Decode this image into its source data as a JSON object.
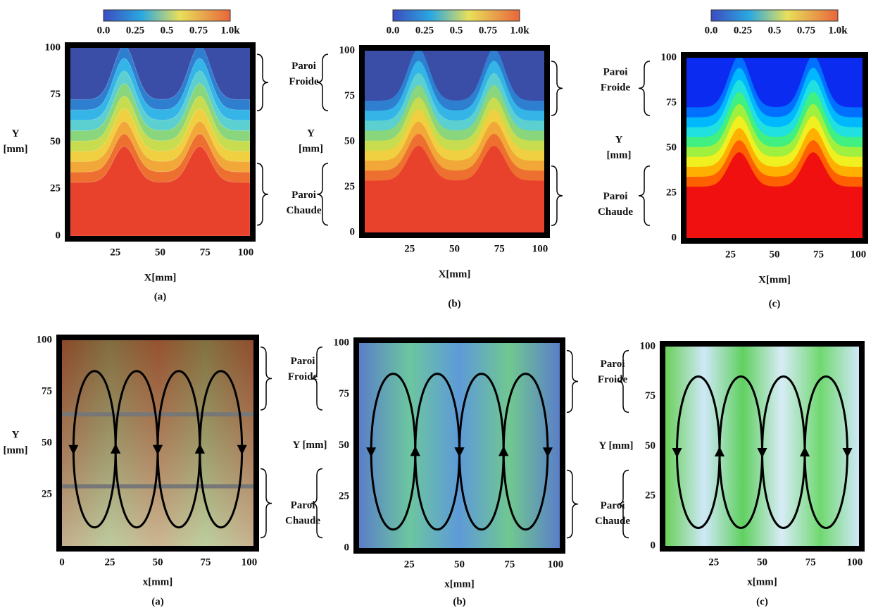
{
  "colorbars": [
    {
      "labels": [
        "0.0",
        "0.25",
        "0.5",
        "0.75",
        "1.0k"
      ]
    },
    {
      "labels": [
        "0.0",
        "0.25",
        "0.5",
        "0.75",
        "1.0k"
      ]
    },
    {
      "labels": [
        "0.0",
        "0.25",
        "0.5",
        "0.75",
        "1.0k"
      ]
    }
  ],
  "rows": [
    {
      "panels": [
        {
          "caption": "(a)",
          "x_label": "X[mm]",
          "y_label": [
            "Y",
            "[mm]"
          ],
          "x_ticks": [
            25,
            50,
            75,
            100
          ],
          "y_ticks": [
            0,
            25,
            50,
            75,
            100
          ]
        },
        {
          "caption": "(b)",
          "x_label": "X[mm]",
          "y_label": [
            "Y",
            "[mm]"
          ],
          "x_ticks": [
            25,
            50,
            75,
            100
          ],
          "y_ticks": [
            0,
            25,
            50,
            75,
            100
          ]
        },
        {
          "caption": "(c)",
          "x_label": "X[mm]",
          "y_label": [
            "Y",
            "[mm]"
          ],
          "x_ticks": [
            25,
            50,
            75,
            100
          ],
          "y_ticks": [
            0,
            25,
            50,
            75,
            100
          ]
        }
      ],
      "walls": [
        {
          "cold": [
            "Paroi",
            "Froide"
          ],
          "hot": [
            "Paroi",
            "Chaude"
          ]
        },
        {
          "cold": [
            "Paroi",
            "Froide"
          ],
          "hot": [
            "Paroi",
            "Chaude"
          ]
        }
      ]
    },
    {
      "panels": [
        {
          "caption": "(a)",
          "x_label": "x[mm]",
          "y_label": [
            "Y",
            "[mm]"
          ],
          "x_ticks": [
            0,
            25,
            50,
            75,
            100
          ],
          "y_ticks": [
            25,
            50,
            75,
            100
          ]
        },
        {
          "caption": "(b)",
          "x_label": "x[mm]",
          "y_label": [
            "Y [mm]"
          ],
          "x_ticks": [
            25,
            50,
            75,
            100
          ],
          "y_ticks": [
            0,
            25,
            50,
            75,
            100
          ]
        },
        {
          "caption": "(c)",
          "x_label": "x[mm]",
          "y_label": [
            "Y [mm]"
          ],
          "x_ticks": [
            25,
            50,
            75,
            100
          ],
          "y_ticks": [
            0,
            25,
            50,
            75,
            100
          ]
        }
      ],
      "walls": [
        {
          "cold": [
            "Paroi",
            "Froide"
          ],
          "hot": [
            "Paroi",
            "Chaude"
          ]
        },
        {
          "cold": [
            "Paroi",
            "Froide"
          ],
          "hot": [
            "Paroi",
            "Chaude"
          ]
        }
      ]
    }
  ]
}
